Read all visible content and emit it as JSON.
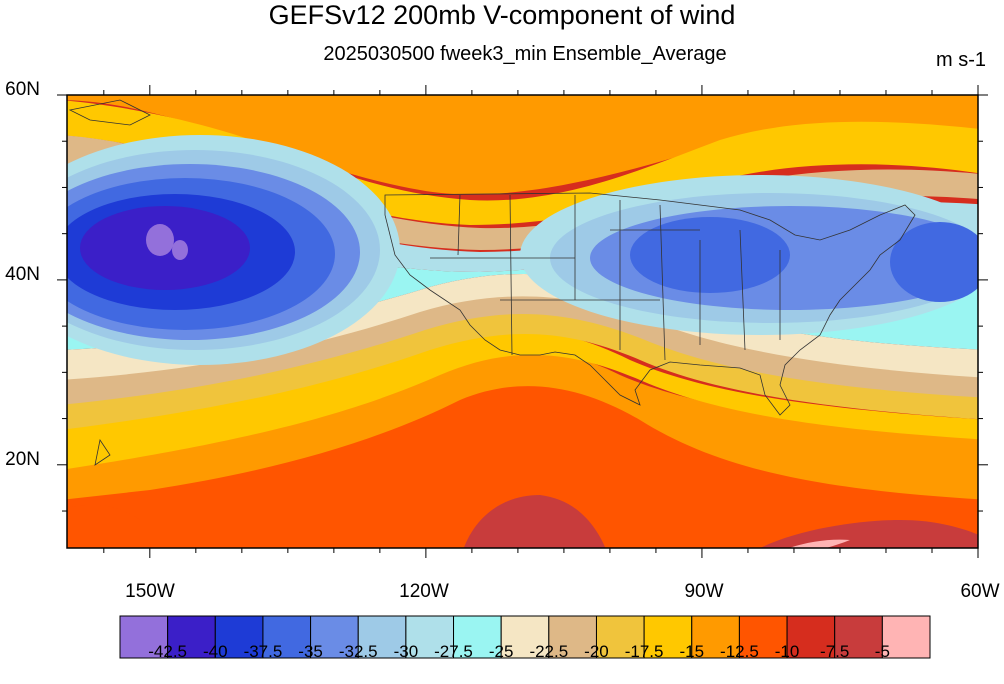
{
  "title": "GEFSv12 200mb V-component of wind",
  "subtitle": "2025030500 fweek3_min Ensemble_Average",
  "units": "m s-1",
  "map": {
    "lat_labels": [
      "60N",
      "40N",
      "20N"
    ],
    "lat_values": [
      60,
      40,
      20
    ],
    "lat_range": [
      11,
      60
    ],
    "lon_labels": [
      "150W",
      "120W",
      "90W",
      "60W"
    ],
    "lon_values": [
      -150,
      -120,
      -90,
      -60
    ],
    "lon_range": [
      -159,
      -60
    ],
    "field": "200mb V-component of wind"
  },
  "colorbar": {
    "tick_labels": [
      "-42.5",
      "-40",
      "-37.5",
      "-35",
      "-32.5",
      "-30",
      "-27.5",
      "-25",
      "-22.5",
      "-20",
      "-17.5",
      "-15",
      "-12.5",
      "-10",
      "-7.5",
      "-5"
    ],
    "colors": [
      "#9370db",
      "#3b1fc8",
      "#1e3bd6",
      "#4169e1",
      "#6a8ce6",
      "#9ecae7",
      "#afe0ea",
      "#9af5f2",
      "#f5e6c4",
      "#deb887",
      "#f0c43c",
      "#ffc800",
      "#ff9a00",
      "#ff5500",
      "#d62d1e",
      "#c83c3c",
      "#ffb4b4"
    ]
  }
}
